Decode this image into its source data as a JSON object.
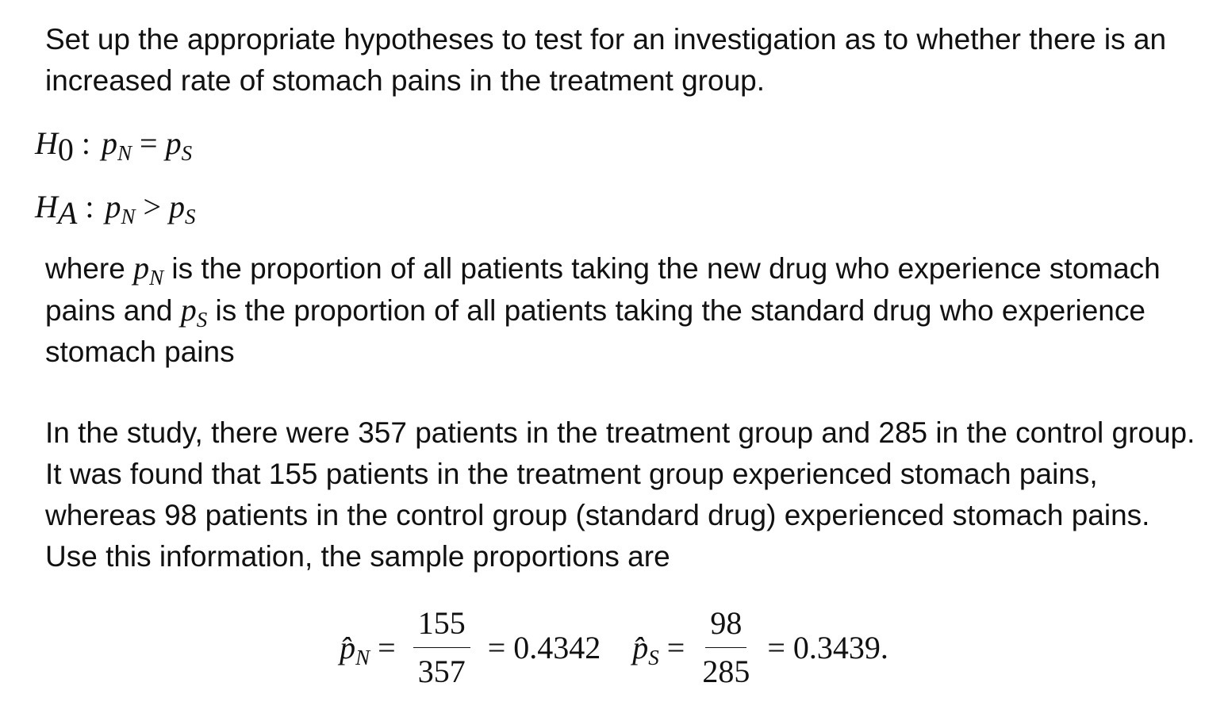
{
  "intro": "Set up the appropriate hypotheses to test for an investigation as to whether there is an increased rate of stomach pains in the treatment group.",
  "hypotheses": [
    {
      "symbol": "H",
      "symbol_sub": "0",
      "separator": ":",
      "left": "p",
      "left_sub": "N",
      "relation": "=",
      "right": "p",
      "right_sub": "S"
    },
    {
      "symbol": "H",
      "symbol_sub": "A",
      "separator": ":",
      "left": "p",
      "left_sub": "N",
      "relation": ">",
      "right": "p",
      "right_sub": "S"
    }
  ],
  "definition": {
    "part1": "where",
    "var1": "p",
    "var1_sub": "N",
    "part2": "is the proportion of all patients taking the new drug who experience stomach pains and",
    "var2": "p",
    "var2_sub": "S",
    "part3": "is the proportion of all patients taking the standard drug who experience stomach pains"
  },
  "study": "In the study, there were 357 patients in the treatment group and 285 in the control group.  It was found that 155 patients in the treatment group experienced stomach pains, whereas 98 patients in the control group (standard drug) experienced stomach pains.  Use this information, the sample proportions are",
  "sample_proportions": [
    {
      "var": "p̂",
      "sub": "N",
      "relation": "=",
      "numerator": "155",
      "denominator": "357",
      "result_relation": "=",
      "result": "0.4342"
    },
    {
      "var": "p̂",
      "sub": "S",
      "relation": "=",
      "numerator": "98",
      "denominator": "285",
      "result_relation": "=",
      "result": "0.3439."
    }
  ]
}
